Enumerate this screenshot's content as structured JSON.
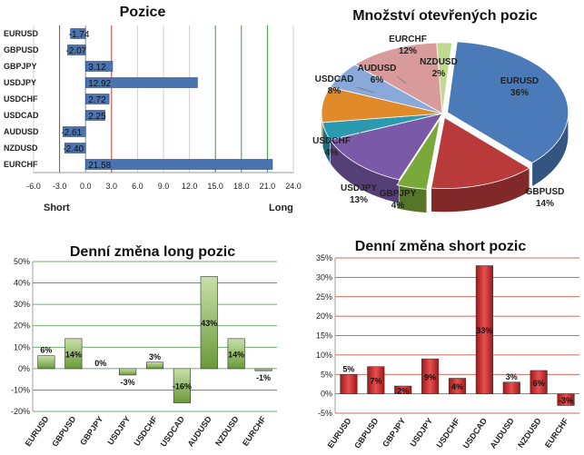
{
  "chart_data": [
    {
      "type": "bar",
      "orientation": "horizontal",
      "title": "Pozice",
      "categories": [
        "EURUSD",
        "GBPUSD",
        "GBPJPY",
        "USDJPY",
        "USDCHF",
        "USDCAD",
        "AUDUSD",
        "NZDUSD",
        "EURCHF"
      ],
      "values": [
        -1.74,
        -2.07,
        3.12,
        12.92,
        2.72,
        2.25,
        -2.61,
        -2.4,
        21.58
      ],
      "value_labels": [
        "-1.74",
        "-2.07",
        "3.12",
        "12.92",
        "2.72",
        "2.25",
        "-2.61",
        "-2.40",
        "21.58"
      ],
      "xlim": [
        -6.0,
        24.0
      ],
      "xticks": [
        "-6.0",
        "-3.0",
        "0.0",
        "3.0",
        "6.0",
        "9.0",
        "12.0",
        "15.0",
        "18.0",
        "21.0",
        "24.0"
      ],
      "left_label": "Short",
      "right_label": "Long",
      "colors": {
        "bar": "#4a74b0",
        "short_grid": "#c0392b",
        "long_grid": "#3a9a3a"
      }
    },
    {
      "type": "pie",
      "title": "Množství otevřených pozic",
      "slices": [
        {
          "label": "EURUSD",
          "value": 36,
          "text": "36%",
          "color": "#4a7ab8"
        },
        {
          "label": "GBPUSD",
          "value": 14,
          "text": "14%",
          "color": "#b83a3a"
        },
        {
          "label": "GBPJPY",
          "value": 4,
          "text": "4%",
          "color": "#7aa83a"
        },
        {
          "label": "USDJPY",
          "value": 13,
          "text": "13%",
          "color": "#7a5aa8"
        },
        {
          "label": "USDCHF",
          "value": 4,
          "text": "4%",
          "color": "#2a9ab0"
        },
        {
          "label": "USDCAD",
          "value": 8,
          "text": "8%",
          "color": "#e08a2a"
        },
        {
          "label": "AUDUSD",
          "value": 6,
          "text": "6%",
          "color": "#8aa8d8"
        },
        {
          "label": "EURCHF",
          "value": 12,
          "text": "12%",
          "color": "#d89a9a"
        },
        {
          "label": "NZDUSD",
          "value": 2,
          "text": "2%",
          "color": "#c0d890"
        }
      ]
    },
    {
      "type": "bar",
      "title": "Denní změna long pozic",
      "categories": [
        "EURUSD",
        "GBPUSD",
        "GBPJPY",
        "USDJPY",
        "USDCHF",
        "USDCAD",
        "AUDUSD",
        "NZDUSD",
        "EURCHF"
      ],
      "values": [
        6,
        14,
        0,
        -3,
        3,
        -16,
        43,
        14,
        -1
      ],
      "value_labels": [
        "6%",
        "14%",
        "0%",
        "-3%",
        "3%",
        "-16%",
        "43%",
        "14%",
        "-1%"
      ],
      "ylim": [
        -20,
        50
      ],
      "yticks": [
        "-20%",
        "-10%",
        "0%",
        "10%",
        "20%",
        "30%",
        "40%",
        "50%"
      ],
      "colors": {
        "bar": "#6a9a3a",
        "grid": "#3a9a3a"
      }
    },
    {
      "type": "bar",
      "title": "Denní změna short pozic",
      "categories": [
        "EURUSD",
        "GBPUSD",
        "GBPJPY",
        "USDJPY",
        "USDCHF",
        "USDCAD",
        "AUDUSD",
        "NZDUSD",
        "EURCHF"
      ],
      "values": [
        5,
        7,
        2,
        9,
        4,
        33,
        3,
        6,
        -3
      ],
      "value_labels": [
        "5%",
        "7%",
        "2%",
        "9%",
        "4%",
        "33%",
        "3%",
        "6%",
        "-3%"
      ],
      "ylim": [
        -5,
        35
      ],
      "yticks": [
        "-5%",
        "0%",
        "5%",
        "10%",
        "15%",
        "20%",
        "25%",
        "30%",
        "35%"
      ],
      "colors": {
        "bar": "#d03030",
        "grid": "#c0392b"
      }
    }
  ]
}
